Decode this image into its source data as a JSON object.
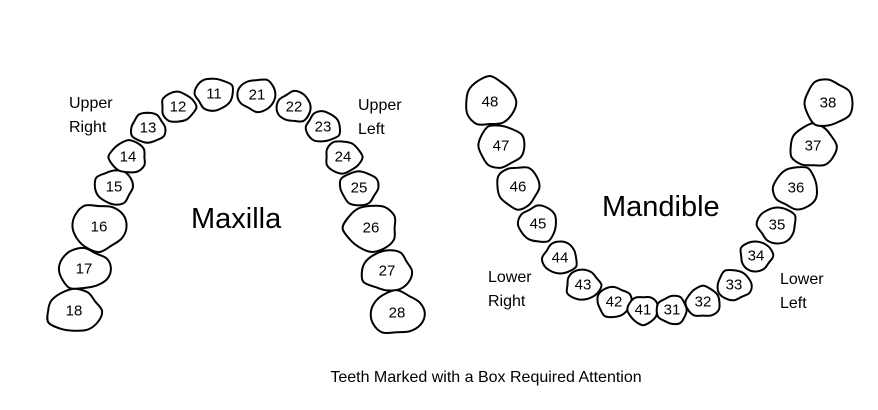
{
  "maxilla": {
    "title": "Maxilla",
    "upper_right_label": [
      "Upper",
      "Right"
    ],
    "upper_left_label": [
      "Upper",
      "Left"
    ],
    "teeth": [
      "18",
      "17",
      "16",
      "15",
      "14",
      "13",
      "12",
      "11",
      "21",
      "22",
      "23",
      "24",
      "25",
      "26",
      "27",
      "28"
    ]
  },
  "mandible": {
    "title": "Mandible",
    "lower_right_label": [
      "Lower",
      "Right"
    ],
    "lower_left_label": [
      "Lower",
      "Left"
    ],
    "teeth": [
      "48",
      "47",
      "46",
      "45",
      "44",
      "43",
      "42",
      "41",
      "31",
      "32",
      "33",
      "34",
      "35",
      "36",
      "37",
      "38"
    ]
  },
  "caption": "Teeth Marked with a Box Required Attention"
}
